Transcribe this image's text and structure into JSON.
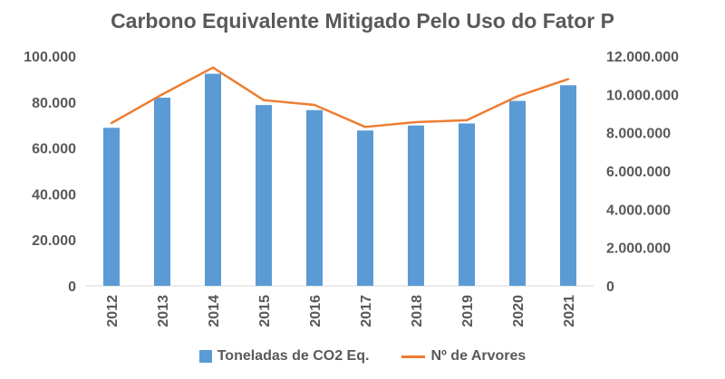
{
  "chart_data": {
    "type": "bar+line",
    "title": "Carbono Equivalente Mitigado Pelo Uso do Fator P",
    "categories": [
      "2012",
      "2013",
      "2014",
      "2015",
      "2016",
      "2017",
      "2018",
      "2019",
      "2020",
      "2021"
    ],
    "series": [
      {
        "name": "Toneladas de CO2 Eq.",
        "type": "bar",
        "axis": "left",
        "color": "#5b9bd5",
        "values": [
          68800,
          81900,
          92300,
          78700,
          76500,
          67600,
          69800,
          70700,
          80500,
          87300
        ]
      },
      {
        "name": "Nº de Arvores",
        "type": "line",
        "axis": "right",
        "color": "#ed7d31",
        "values": [
          8500000,
          10000000,
          11400000,
          9700000,
          9450000,
          8300000,
          8550000,
          8650000,
          9900000,
          10800000
        ]
      }
    ],
    "y_left": {
      "ylim": [
        0,
        100000
      ],
      "ticks": [
        "0",
        "20.000",
        "40.000",
        "60.000",
        "80.000",
        "100.000"
      ]
    },
    "y_right": {
      "ylim": [
        0,
        12000000
      ],
      "ticks": [
        "0",
        "2.000.000",
        "4.000.000",
        "6.000.000",
        "8.000.000",
        "10.000.000",
        "12.000.000"
      ]
    },
    "grid": false,
    "legend": "bottom"
  }
}
